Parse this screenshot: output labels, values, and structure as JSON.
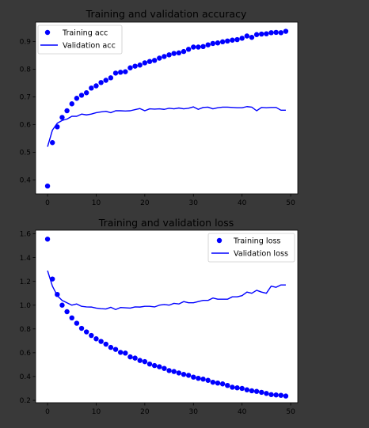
{
  "chart_data": [
    {
      "type": "line",
      "title": "Training and validation accuracy",
      "xlim": [
        -2.45,
        51.45
      ],
      "ylim": [
        0.35,
        0.97
      ],
      "xticks": [
        0,
        10,
        20,
        30,
        40,
        50
      ],
      "yticks": [
        0.4,
        0.5,
        0.6,
        0.7,
        0.8,
        0.9
      ],
      "legend_position": "top-left",
      "grid": false,
      "series": [
        {
          "name": "Training acc",
          "style": "markers",
          "color": "#0000ff",
          "x": [
            0,
            1,
            2,
            3,
            4,
            5,
            6,
            7,
            8,
            9,
            10,
            11,
            12,
            13,
            14,
            15,
            16,
            17,
            18,
            19,
            20,
            21,
            22,
            23,
            24,
            25,
            26,
            27,
            28,
            29,
            30,
            31,
            32,
            33,
            34,
            35,
            36,
            37,
            38,
            39,
            40,
            41,
            42,
            43,
            44,
            45,
            46,
            47,
            48,
            49
          ],
          "values": [
            0.378,
            0.535,
            0.592,
            0.626,
            0.65,
            0.675,
            0.695,
            0.706,
            0.715,
            0.732,
            0.74,
            0.752,
            0.76,
            0.769,
            0.786,
            0.789,
            0.791,
            0.805,
            0.811,
            0.815,
            0.823,
            0.828,
            0.832,
            0.84,
            0.846,
            0.852,
            0.857,
            0.859,
            0.864,
            0.872,
            0.88,
            0.88,
            0.882,
            0.888,
            0.893,
            0.895,
            0.899,
            0.902,
            0.905,
            0.907,
            0.912,
            0.92,
            0.915,
            0.925,
            0.927,
            0.928,
            0.932,
            0.933,
            0.932,
            0.937
          ]
        },
        {
          "name": "Validation acc",
          "style": "line",
          "color": "#0000ff",
          "x": [
            0,
            1,
            2,
            3,
            4,
            5,
            6,
            7,
            8,
            9,
            10,
            11,
            12,
            13,
            14,
            15,
            16,
            17,
            18,
            19,
            20,
            21,
            22,
            23,
            24,
            25,
            26,
            27,
            28,
            29,
            30,
            31,
            32,
            33,
            34,
            35,
            36,
            37,
            38,
            39,
            40,
            41,
            42,
            43,
            44,
            45,
            46,
            47,
            48,
            49
          ],
          "values": [
            0.52,
            0.58,
            0.605,
            0.615,
            0.62,
            0.63,
            0.63,
            0.638,
            0.635,
            0.638,
            0.643,
            0.646,
            0.648,
            0.643,
            0.65,
            0.65,
            0.649,
            0.65,
            0.654,
            0.658,
            0.65,
            0.657,
            0.656,
            0.657,
            0.655,
            0.659,
            0.657,
            0.66,
            0.657,
            0.659,
            0.664,
            0.655,
            0.662,
            0.663,
            0.657,
            0.661,
            0.663,
            0.663,
            0.662,
            0.661,
            0.661,
            0.665,
            0.663,
            0.65,
            0.662,
            0.661,
            0.662,
            0.662,
            0.652,
            0.652
          ]
        }
      ]
    },
    {
      "type": "line",
      "title": "Training and validation loss",
      "xlim": [
        -2.45,
        51.45
      ],
      "ylim": [
        0.18,
        1.63
      ],
      "xticks": [
        0,
        10,
        20,
        30,
        40,
        50
      ],
      "yticks": [
        0.2,
        0.4,
        0.6,
        0.8,
        1.0,
        1.2,
        1.4,
        1.6
      ],
      "legend_position": "top-right",
      "grid": false,
      "series": [
        {
          "name": "Training loss",
          "style": "markers",
          "color": "#0000ff",
          "x": [
            0,
            1,
            2,
            3,
            4,
            5,
            6,
            7,
            8,
            9,
            10,
            11,
            12,
            13,
            14,
            15,
            16,
            17,
            18,
            19,
            20,
            21,
            22,
            23,
            24,
            25,
            26,
            27,
            28,
            29,
            30,
            31,
            32,
            33,
            34,
            35,
            36,
            37,
            38,
            39,
            40,
            41,
            42,
            43,
            44,
            45,
            46,
            47,
            48,
            49
          ],
          "values": [
            1.555,
            1.22,
            1.09,
            1.0,
            0.945,
            0.893,
            0.848,
            0.805,
            0.775,
            0.745,
            0.717,
            0.695,
            0.672,
            0.645,
            0.628,
            0.603,
            0.597,
            0.565,
            0.555,
            0.535,
            0.525,
            0.505,
            0.492,
            0.482,
            0.468,
            0.45,
            0.442,
            0.43,
            0.418,
            0.41,
            0.395,
            0.385,
            0.378,
            0.368,
            0.352,
            0.345,
            0.338,
            0.325,
            0.31,
            0.305,
            0.3,
            0.288,
            0.28,
            0.275,
            0.267,
            0.258,
            0.248,
            0.245,
            0.242,
            0.236
          ]
        },
        {
          "name": "Validation loss",
          "style": "line",
          "color": "#0000ff",
          "x": [
            0,
            1,
            2,
            3,
            4,
            5,
            6,
            7,
            8,
            9,
            10,
            11,
            12,
            13,
            14,
            15,
            16,
            17,
            18,
            19,
            20,
            21,
            22,
            23,
            24,
            25,
            26,
            27,
            28,
            29,
            30,
            31,
            32,
            33,
            34,
            35,
            36,
            37,
            38,
            39,
            40,
            41,
            42,
            43,
            44,
            45,
            46,
            47,
            48,
            49
          ],
          "values": [
            1.29,
            1.16,
            1.08,
            1.04,
            1.02,
            1.0,
            1.01,
            0.99,
            0.985,
            0.984,
            0.975,
            0.97,
            0.968,
            0.982,
            0.963,
            0.98,
            0.978,
            0.975,
            0.985,
            0.984,
            0.99,
            0.99,
            0.985,
            1.0,
            1.005,
            1.0,
            1.015,
            1.01,
            1.03,
            1.02,
            1.02,
            1.03,
            1.04,
            1.04,
            1.06,
            1.05,
            1.05,
            1.05,
            1.07,
            1.07,
            1.08,
            1.11,
            1.1,
            1.125,
            1.11,
            1.1,
            1.16,
            1.15,
            1.17,
            1.17
          ]
        }
      ]
    }
  ]
}
